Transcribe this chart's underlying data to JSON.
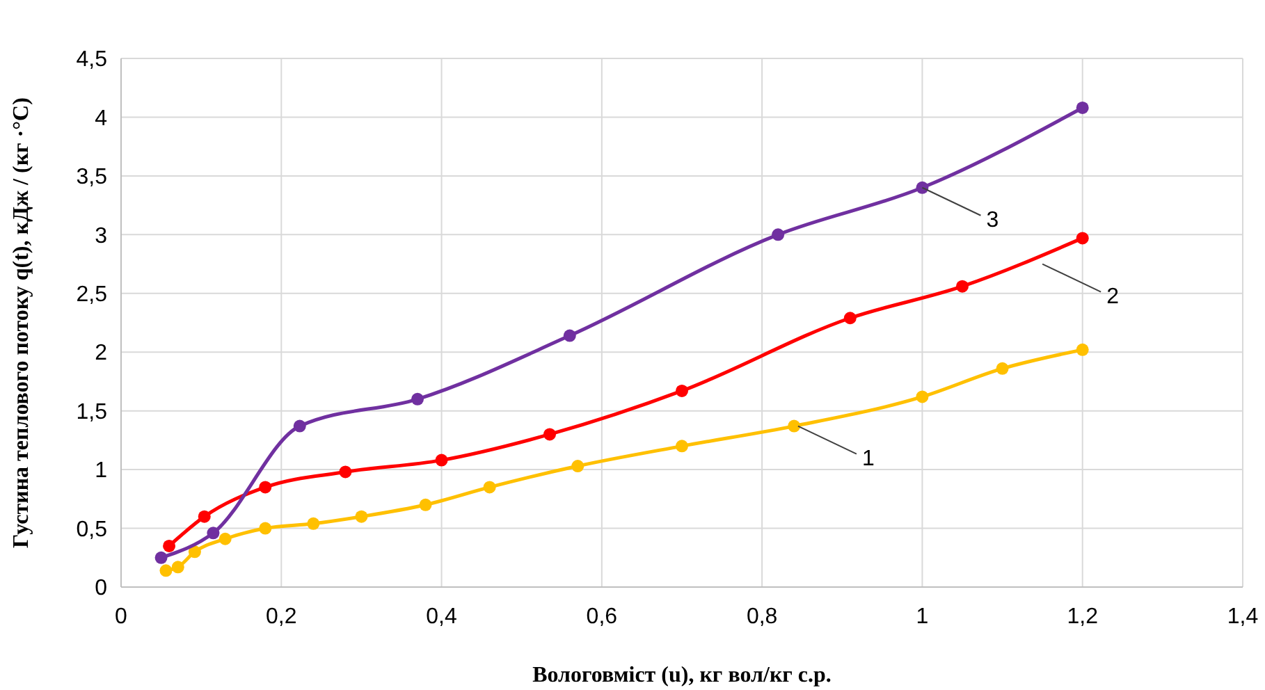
{
  "chart_data": {
    "type": "line",
    "xlabel": "Вологовміст (u), кг вол/кг с.р.",
    "ylabel": "Густина теплового потоку q(t), кДж / (кг ·°C)",
    "xlim": [
      0,
      1.4
    ],
    "xticks": [
      0,
      {
        "value": 0.2,
        "label": "0,2"
      },
      {
        "value": 0.4,
        "label": "0,4"
      },
      {
        "value": 0.6,
        "label": "0,6"
      },
      {
        "value": 0.8,
        "label": "0,8"
      },
      1,
      {
        "value": 1.2,
        "label": "1,2"
      },
      {
        "value": 1.4,
        "label": "1,4"
      }
    ],
    "ylim": [
      0,
      4.5
    ],
    "yticks": [
      0,
      {
        "value": 0.5,
        "label": "0,5"
      },
      1,
      {
        "value": 1.5,
        "label": "1,5"
      },
      2,
      {
        "value": 2.5,
        "label": "2,5"
      },
      3,
      {
        "value": 3.5,
        "label": "3,5"
      },
      4,
      {
        "value": 4.5,
        "label": "4,5"
      }
    ],
    "grid": true,
    "marker": "circle",
    "line_style": "solid",
    "series": [
      {
        "color": "#ffc000",
        "x": [
          0.056,
          0.071,
          0.092,
          0.13,
          0.18,
          0.24,
          0.3,
          0.38,
          0.46,
          0.57,
          0.7,
          0.84,
          1.0,
          1.1,
          1.2
        ],
        "values": [
          0.14,
          0.17,
          0.3,
          0.41,
          0.5,
          0.54,
          0.6,
          0.7,
          0.85,
          1.03,
          1.2,
          1.37,
          1.62,
          1.86,
          2.02
        ]
      },
      {
        "color": "#ff0000",
        "x": [
          0.06,
          0.104,
          0.18,
          0.28,
          0.4,
          0.535,
          0.7,
          0.91,
          1.05,
          1.2
        ],
        "values": [
          0.35,
          0.6,
          0.85,
          0.98,
          1.08,
          1.3,
          1.67,
          2.29,
          2.56,
          2.97
        ]
      },
      {
        "color": "#7030a0",
        "x": [
          0.05,
          0.115,
          0.223,
          0.37,
          0.56,
          0.82,
          1.0,
          1.2
        ],
        "values": [
          0.25,
          0.46,
          1.37,
          1.6,
          2.14,
          3.0,
          3.4,
          4.08
        ]
      }
    ],
    "annotations": [
      {
        "text": "1",
        "x": 0.845,
        "y": 1.37
      },
      {
        "text": "2",
        "x": 1.15,
        "y": 2.75
      },
      {
        "text": "3",
        "x": 1.0,
        "y": 3.4
      }
    ]
  }
}
